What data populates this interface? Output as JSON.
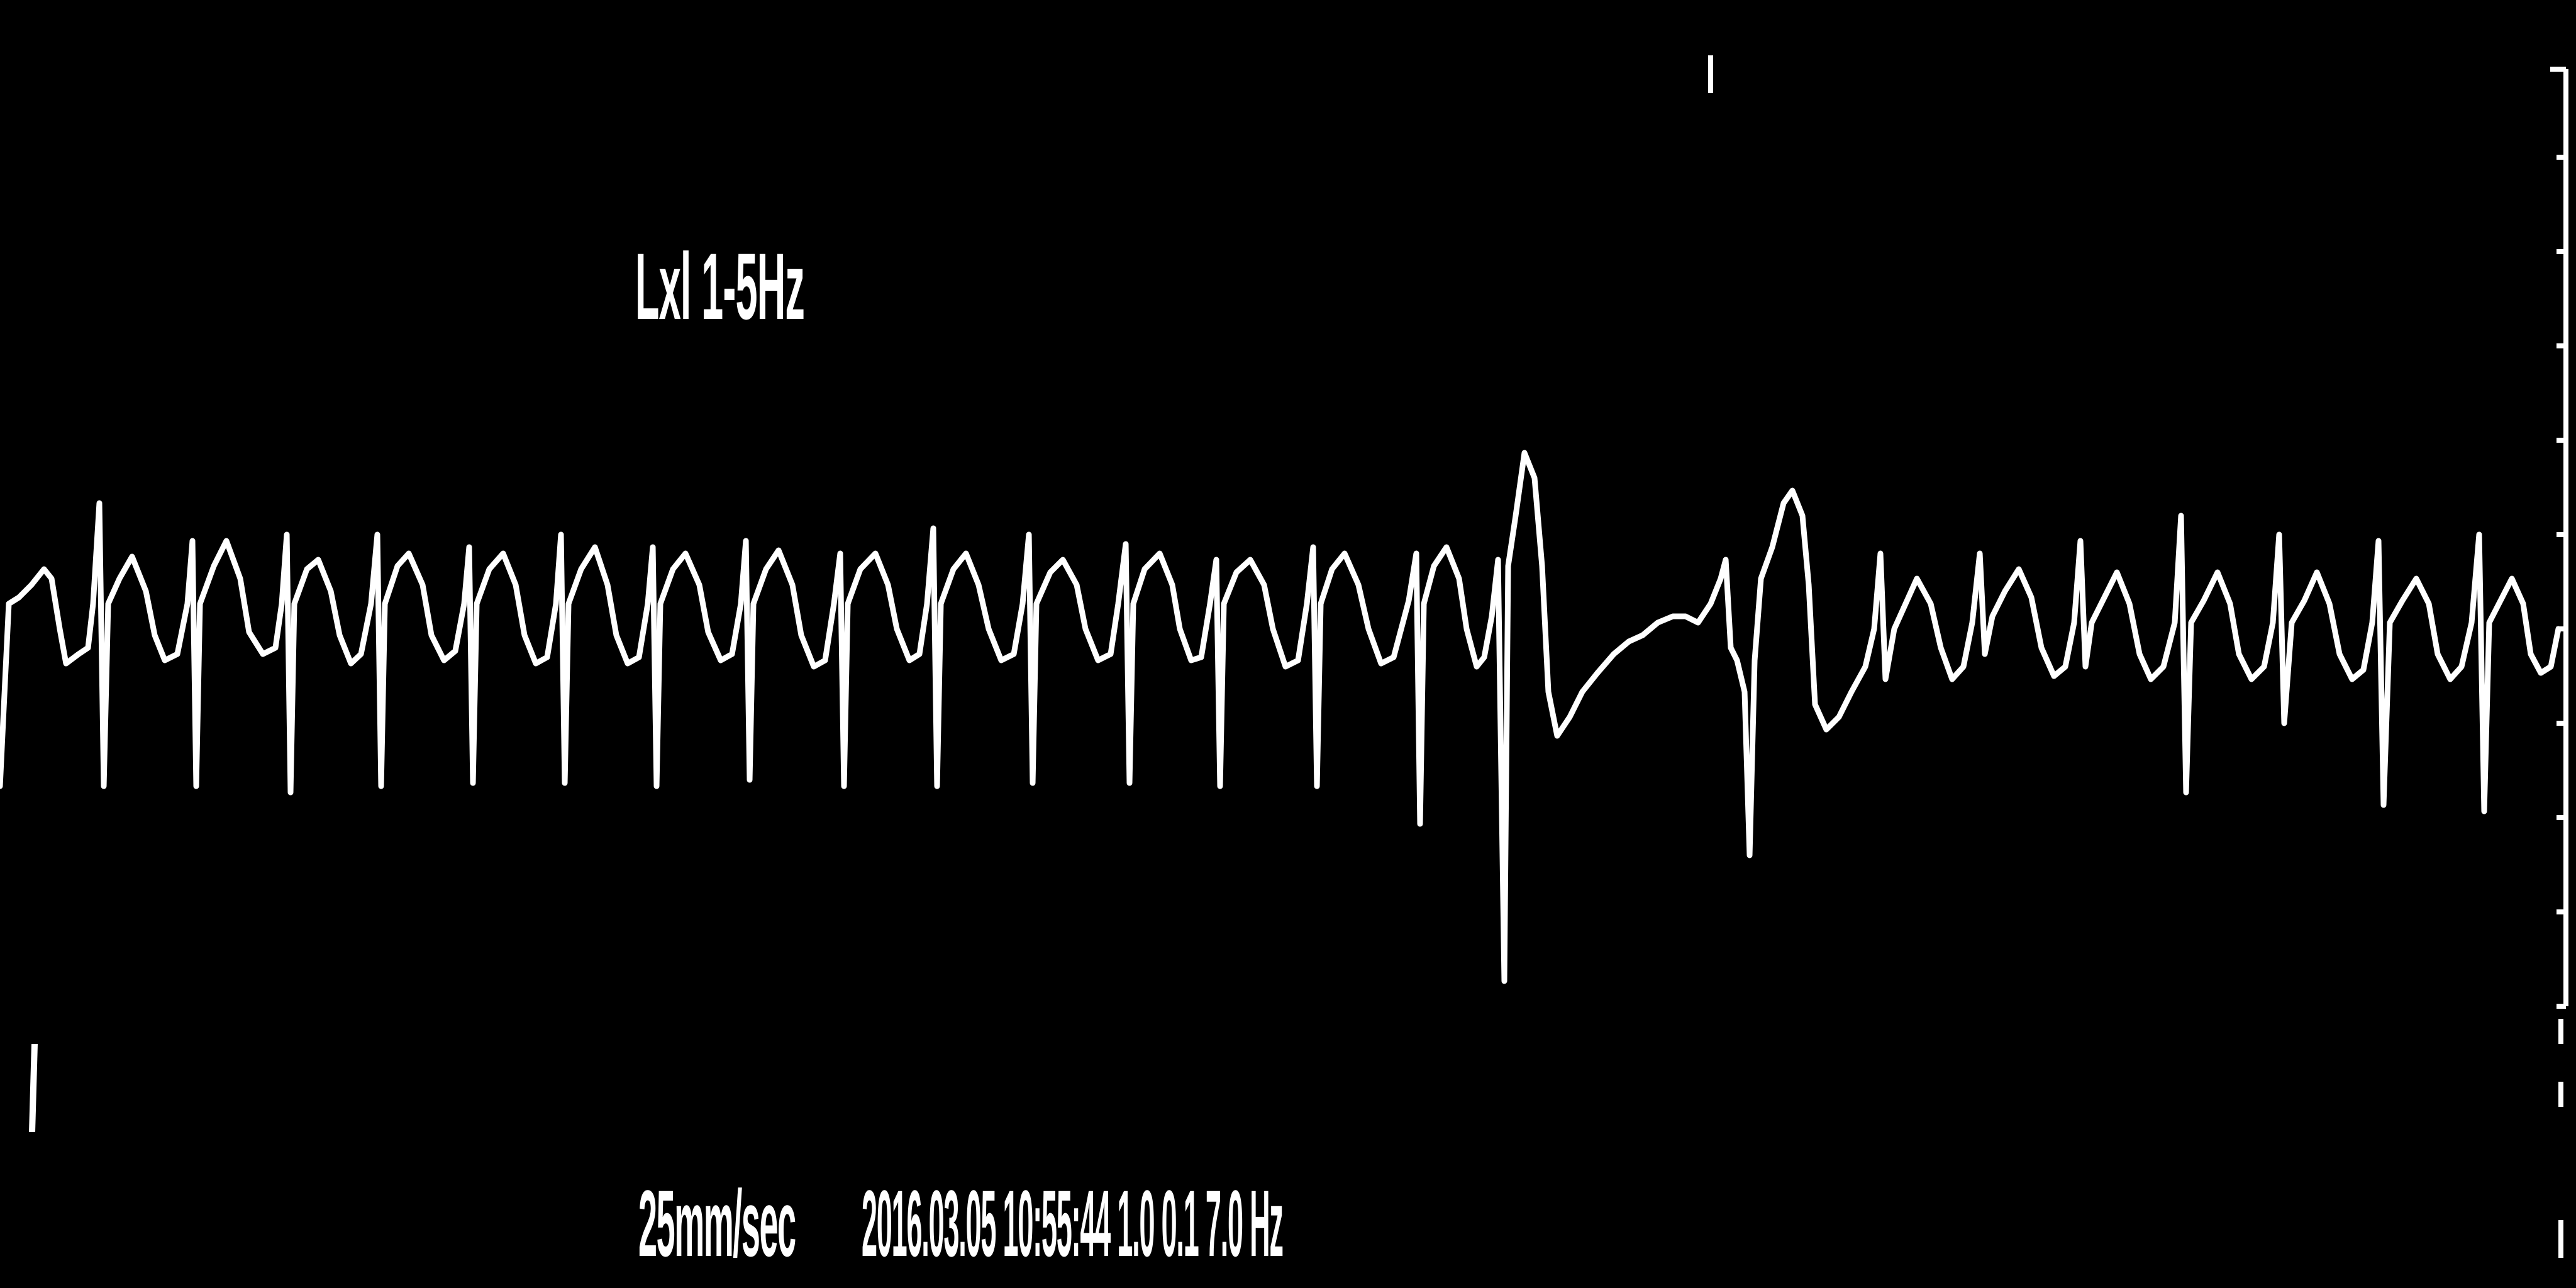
{
  "window": {
    "background_color": "#000000",
    "trace_color": "#ffffff"
  },
  "strip": {
    "lead_label": "Lxl 1-5Hz",
    "speed_label": "25mm/sec",
    "timestamp": "2016.03.05 10:55:44  1.0  0.1 7.0 Hz"
  },
  "icons": {
    "top_marker": "tick-mark-icon",
    "left_marker": "tick-mark-icon",
    "right_scale": "ruler-scale-icon"
  }
}
